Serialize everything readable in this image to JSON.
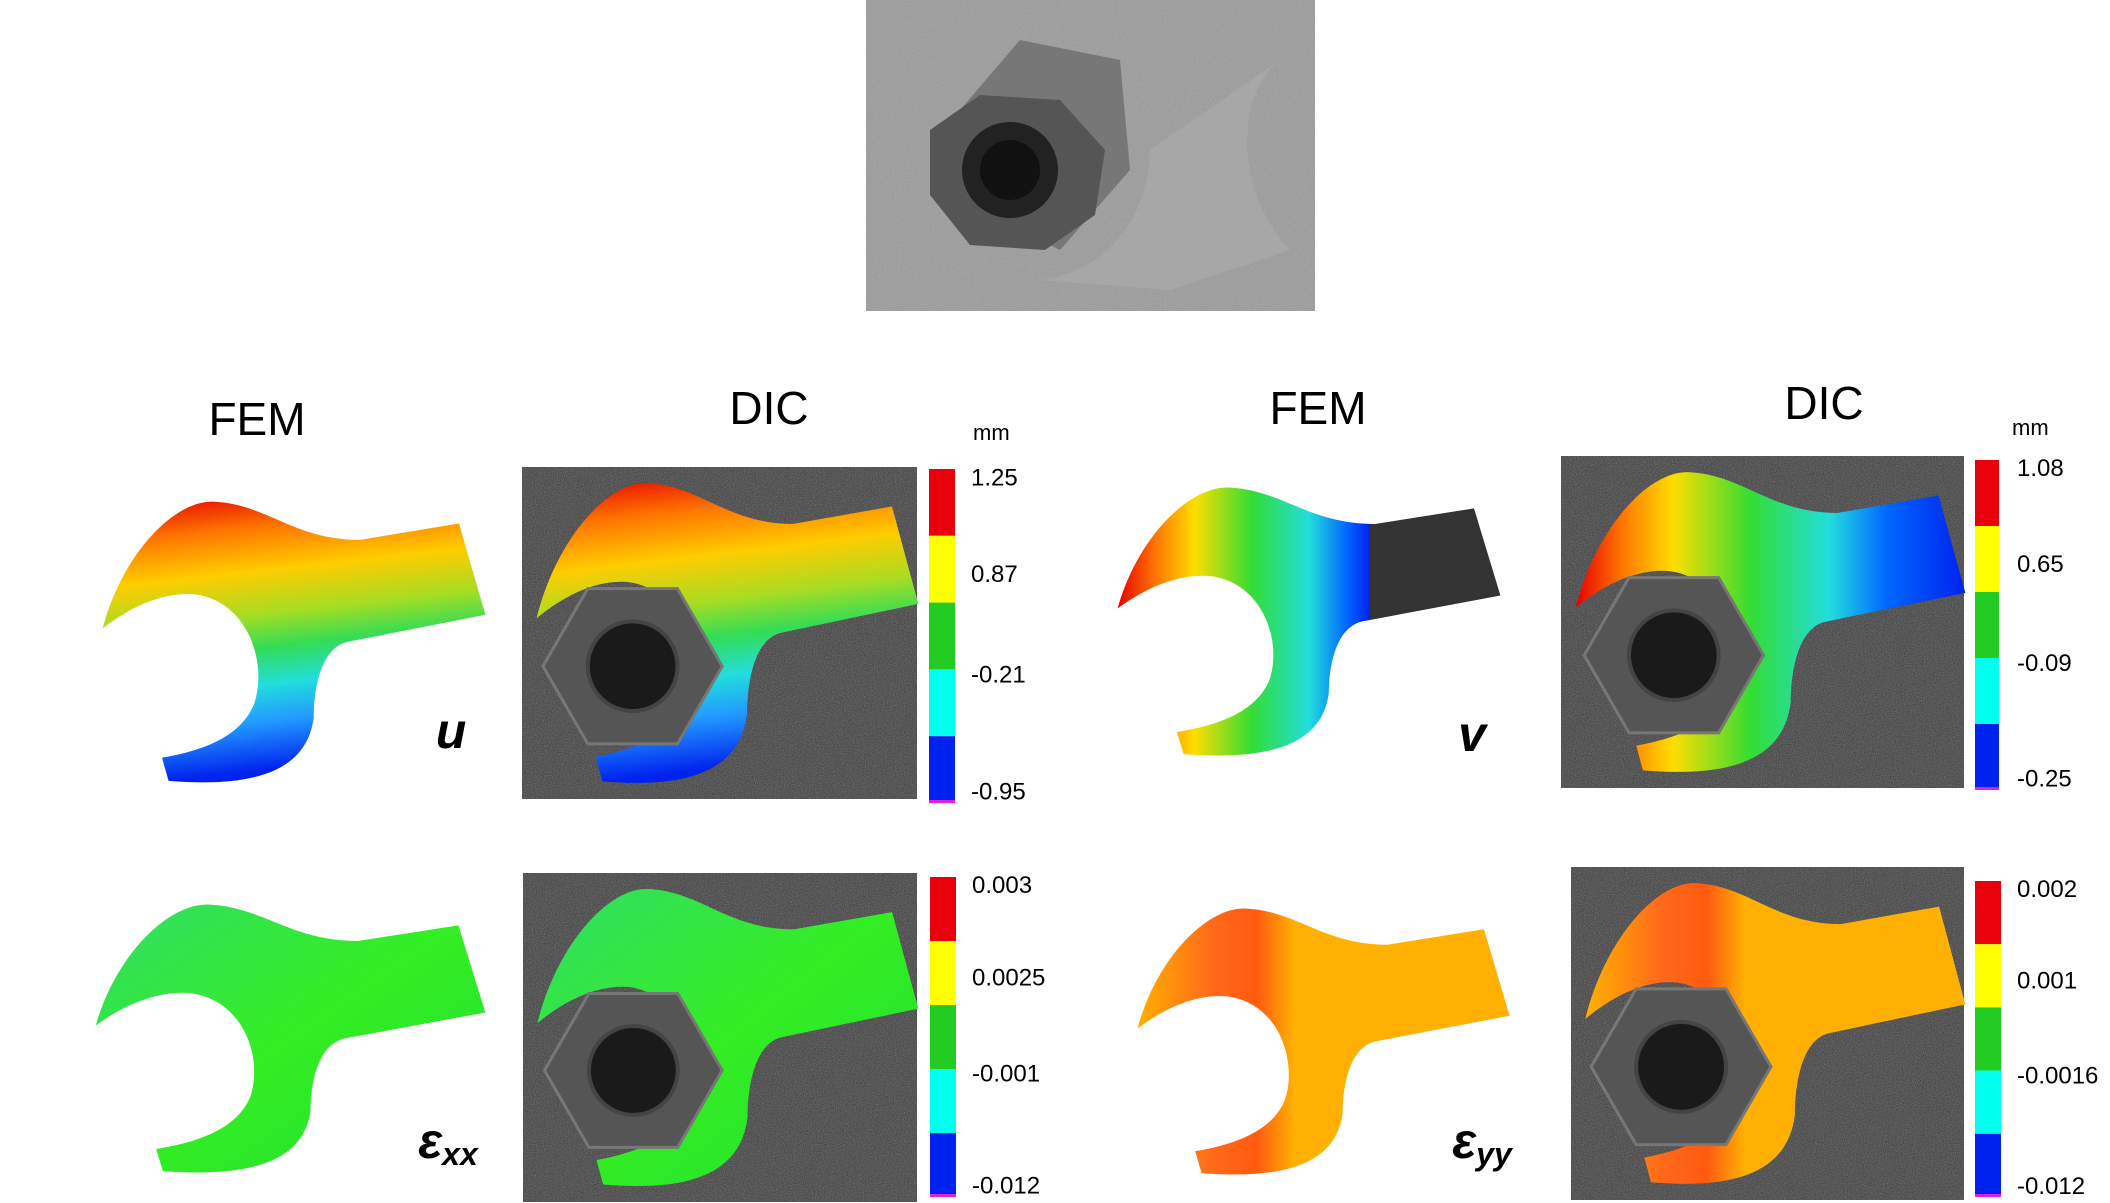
{
  "headers": [
    "FEM",
    "DIC",
    "FEM",
    "DIC"
  ],
  "panels": [
    {
      "symbol": "u",
      "unit": "mm",
      "scale": [
        "1.25",
        "0.87",
        "-0.21",
        "-0.95"
      ]
    },
    {
      "symbol": "v",
      "unit": "mm",
      "scale": [
        "1.08",
        "0.65",
        "-0.09",
        "-0.25"
      ]
    },
    {
      "symbol": "ε",
      "subscript": "xx",
      "scale": [
        "0.003",
        "0.0025",
        "-0.001",
        "-0.012"
      ]
    },
    {
      "symbol": "ε",
      "subscript": "yy",
      "scale": [
        "0.002",
        "0.001",
        "-0.0016",
        "-0.012"
      ]
    }
  ]
}
